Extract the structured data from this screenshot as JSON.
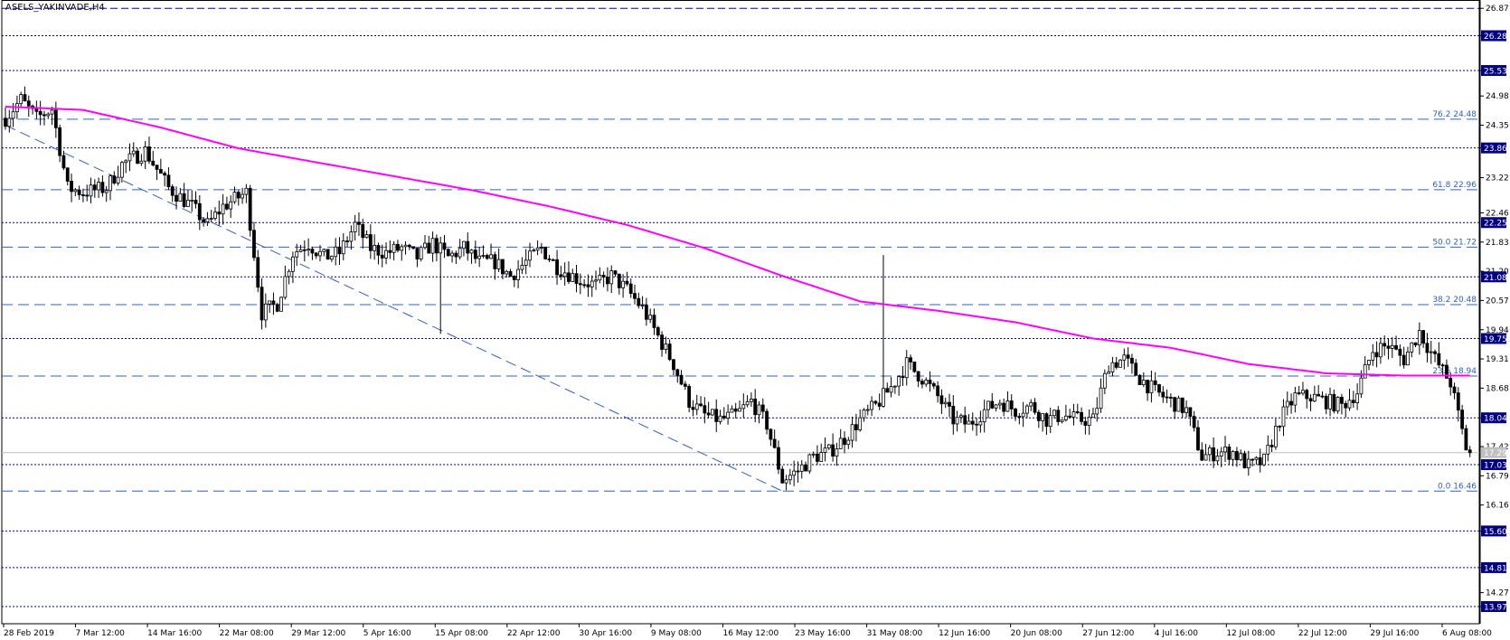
{
  "chart_data": {
    "type": "candlestick",
    "title": "ASELS_YAKINVADE,H4",
    "ylim": [
      13.6,
      27.05
    ],
    "price_axis_ticks": [
      "26.87",
      "26.28",
      "25.53",
      "24.98",
      "24.35",
      "23.86",
      "23.22",
      "22.46",
      "21.83",
      "21.20",
      "20.57",
      "19.94",
      "19.31",
      "18.68",
      "18.04",
      "17.42",
      "16.79",
      "16.16",
      "15.60",
      "14.81",
      "14.27",
      "13.97"
    ],
    "highlighted_levels": [
      26.28,
      25.53,
      23.86,
      22.25,
      21.08,
      19.75,
      18.04,
      17.03,
      15.6,
      14.81,
      13.97
    ],
    "level_labels": [
      "26.28",
      "25.53",
      "23.86",
      "22.25",
      "21.08",
      "19.75",
      "18.04",
      "17.03",
      "15.60",
      "14.81",
      "13.97"
    ],
    "top_level": 26.87,
    "current_price": 17.29,
    "current_price_label": "17.29",
    "fibonacci": [
      {
        "label": "76.2 24.48",
        "value": 24.48
      },
      {
        "label": "61.8 22.96",
        "value": 22.96
      },
      {
        "label": "50.0 21.72",
        "value": 21.72
      },
      {
        "label": "38.2 20.48",
        "value": 20.48
      },
      {
        "label": "23.6 18.94",
        "value": 18.94
      },
      {
        "label": "0.0 16.46",
        "value": 16.46
      }
    ],
    "time_axis_labels": [
      "28 Feb 2019",
      "7 Mar 12:00",
      "14 Mar 16:00",
      "22 Mar 08:00",
      "29 Mar 12:00",
      "5 Apr 16:00",
      "15 Apr 08:00",
      "22 Apr 12:00",
      "30 Apr 16:00",
      "9 May 08:00",
      "16 May 12:00",
      "23 May 16:00",
      "31 May 08:00",
      "12 Jun 16:00",
      "20 Jun 08:00",
      "27 Jun 12:00",
      "4 Jul 16:00",
      "12 Jul 08:00",
      "22 Jul 12:00",
      "29 Jul 16:00",
      "6 Aug 08:00"
    ],
    "trendline": {
      "start_index": 0,
      "start_value": 24.35,
      "end_index": 200,
      "end_value": 16.46
    },
    "candles_count": 378,
    "price_path": [
      [
        0,
        24.5
      ],
      [
        4,
        24.9
      ],
      [
        8,
        24.5
      ],
      [
        12,
        24.7
      ],
      [
        16,
        23.0
      ],
      [
        20,
        22.9
      ],
      [
        26,
        23.0
      ],
      [
        30,
        23.5
      ],
      [
        36,
        23.8
      ],
      [
        42,
        23.0
      ],
      [
        48,
        22.6
      ],
      [
        52,
        22.2
      ],
      [
        56,
        22.6
      ],
      [
        62,
        22.9
      ],
      [
        66,
        20.3
      ],
      [
        70,
        20.5
      ],
      [
        74,
        21.6
      ],
      [
        78,
        21.8
      ],
      [
        82,
        21.5
      ],
      [
        86,
        21.6
      ],
      [
        90,
        22.2
      ],
      [
        94,
        21.7
      ],
      [
        98,
        21.6
      ],
      [
        102,
        21.7
      ],
      [
        106,
        21.5
      ],
      [
        110,
        21.8
      ],
      [
        114,
        21.5
      ],
      [
        118,
        21.7
      ],
      [
        122,
        21.4
      ],
      [
        126,
        21.4
      ],
      [
        130,
        21.1
      ],
      [
        134,
        21.4
      ],
      [
        138,
        21.7
      ],
      [
        142,
        21.3
      ],
      [
        148,
        21.0
      ],
      [
        152,
        20.9
      ],
      [
        156,
        21.1
      ],
      [
        160,
        20.8
      ],
      [
        164,
        20.4
      ],
      [
        168,
        19.8
      ],
      [
        172,
        19.2
      ],
      [
        176,
        18.4
      ],
      [
        180,
        18.1
      ],
      [
        184,
        18.0
      ],
      [
        188,
        18.1
      ],
      [
        192,
        18.4
      ],
      [
        196,
        17.9
      ],
      [
        200,
        16.7
      ],
      [
        204,
        16.9
      ],
      [
        208,
        17.2
      ],
      [
        212,
        17.3
      ],
      [
        216,
        17.6
      ],
      [
        220,
        18.0
      ],
      [
        224,
        18.3
      ],
      [
        228,
        18.7
      ],
      [
        232,
        19.2
      ],
      [
        236,
        18.9
      ],
      [
        240,
        18.5
      ],
      [
        244,
        18.0
      ],
      [
        248,
        17.9
      ],
      [
        252,
        18.2
      ],
      [
        256,
        18.4
      ],
      [
        260,
        18.2
      ],
      [
        264,
        18.3
      ],
      [
        268,
        18.0
      ],
      [
        272,
        18.1
      ],
      [
        276,
        18.0
      ],
      [
        280,
        18.0
      ],
      [
        284,
        19.2
      ],
      [
        288,
        19.3
      ],
      [
        292,
        18.9
      ],
      [
        296,
        18.6
      ],
      [
        300,
        18.4
      ],
      [
        304,
        18.2
      ],
      [
        308,
        17.2
      ],
      [
        312,
        17.3
      ],
      [
        316,
        17.3
      ],
      [
        320,
        17.0
      ],
      [
        324,
        17.1
      ],
      [
        328,
        18.0
      ],
      [
        332,
        18.5
      ],
      [
        336,
        18.5
      ],
      [
        340,
        18.4
      ],
      [
        344,
        18.3
      ],
      [
        348,
        18.6
      ],
      [
        352,
        19.5
      ],
      [
        356,
        19.6
      ],
      [
        360,
        19.3
      ],
      [
        364,
        19.9
      ],
      [
        368,
        19.3
      ],
      [
        372,
        18.8
      ],
      [
        376,
        17.4
      ],
      [
        377,
        17.29
      ]
    ],
    "ma_path": [
      [
        0,
        24.75
      ],
      [
        20,
        24.68
      ],
      [
        40,
        24.3
      ],
      [
        60,
        23.85
      ],
      [
        80,
        23.55
      ],
      [
        100,
        23.25
      ],
      [
        120,
        22.95
      ],
      [
        140,
        22.6
      ],
      [
        160,
        22.2
      ],
      [
        180,
        21.7
      ],
      [
        200,
        21.1
      ],
      [
        220,
        20.55
      ],
      [
        240,
        20.35
      ],
      [
        260,
        20.1
      ],
      [
        280,
        19.75
      ],
      [
        300,
        19.55
      ],
      [
        320,
        19.2
      ],
      [
        340,
        19.0
      ],
      [
        360,
        18.95
      ],
      [
        378,
        18.95
      ]
    ],
    "ma_color": "#ff00ff",
    "candle_color": "#000000",
    "level_color": "#000080",
    "fib_color": "#3060c0"
  }
}
